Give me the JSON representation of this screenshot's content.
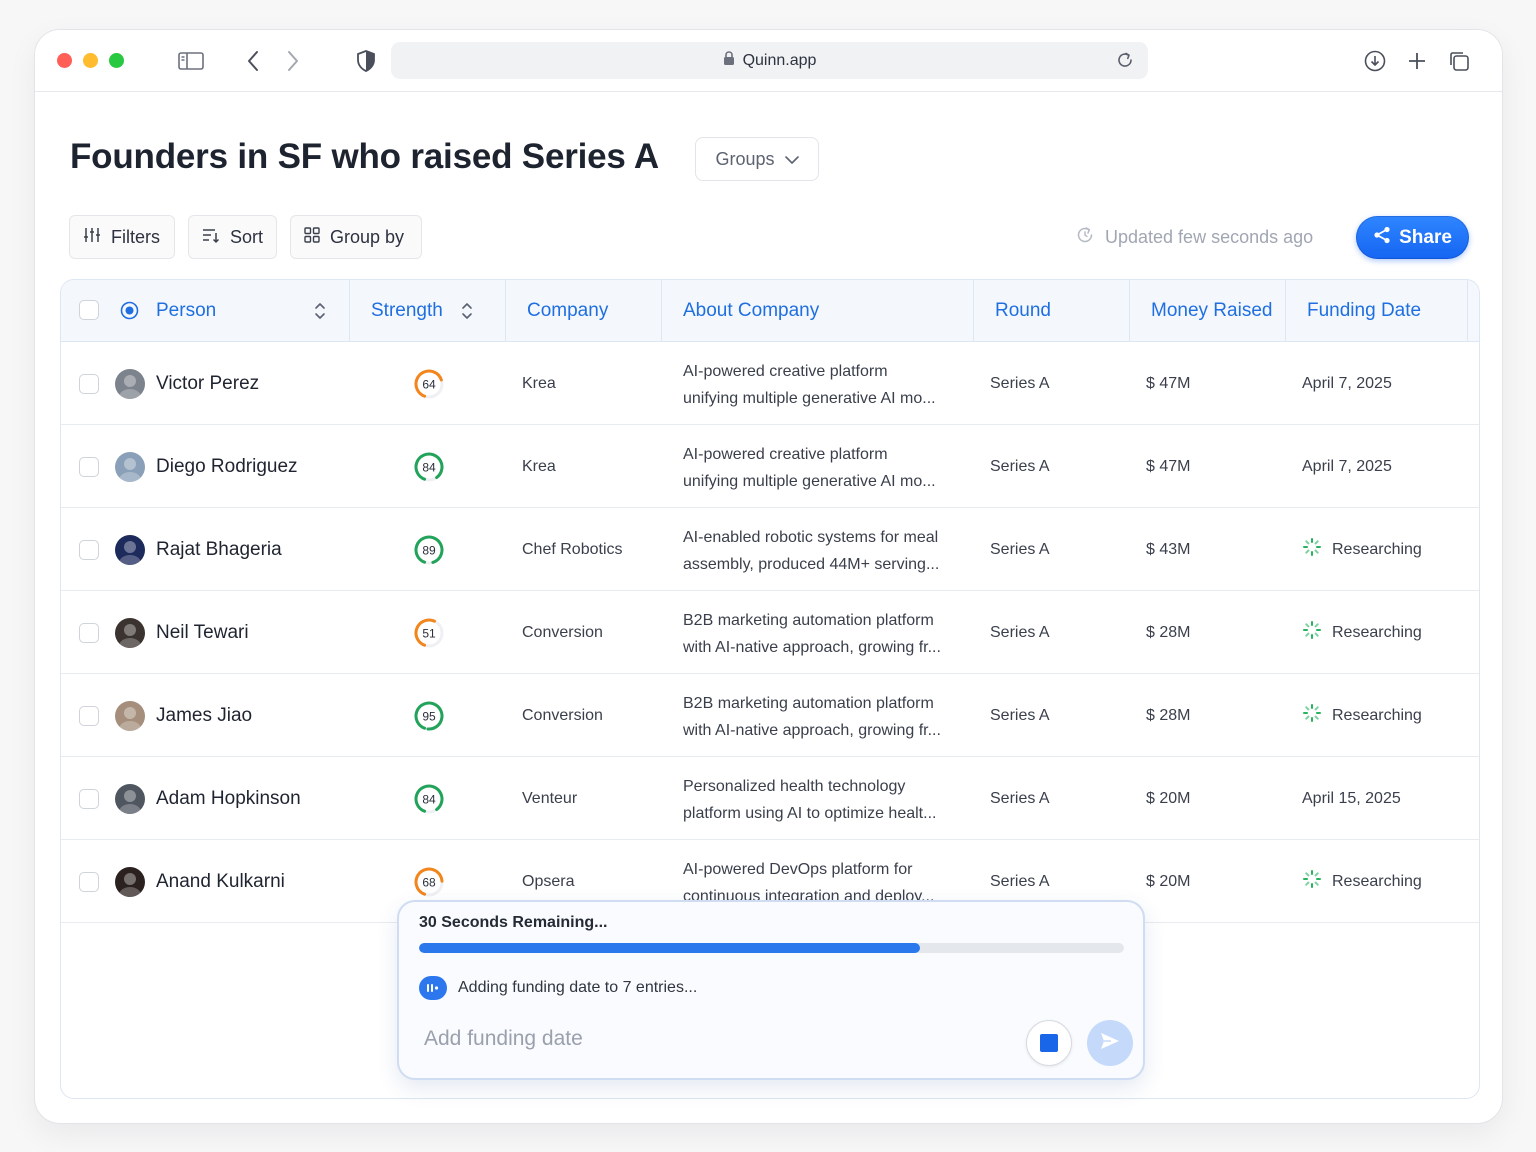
{
  "browser": {
    "url": "Quinn.app"
  },
  "page": {
    "title": "Founders in SF who raised Series A",
    "groups_label": "Groups"
  },
  "toolbar": {
    "filters_label": "Filters",
    "sort_label": "Sort",
    "group_by_label": "Group by",
    "updated_text": "Updated few seconds ago",
    "share_label": "Share"
  },
  "table": {
    "columns": {
      "person": "Person",
      "strength": "Strength",
      "company": "Company",
      "about": "About Company",
      "round": "Round",
      "money": "Money Raised",
      "date": "Funding Date"
    },
    "rows": [
      {
        "name": "Victor Perez",
        "strength": "64",
        "strength_color": "#f2851b",
        "company": "Krea",
        "about1": "AI-powered creative platform",
        "about2": "unifying multiple generative AI mo...",
        "round": "Series A",
        "money": "$ 47M",
        "date": "April 7, 2025"
      },
      {
        "name": "Diego Rodriguez",
        "strength": "84",
        "strength_color": "#22a35a",
        "company": "Krea",
        "about1": "AI-powered creative platform",
        "about2": "unifying multiple generative AI mo...",
        "round": "Series A",
        "money": "$ 47M",
        "date": "April 7, 2025"
      },
      {
        "name": "Rajat Bhageria",
        "strength": "89",
        "strength_color": "#22a35a",
        "company": "Chef Robotics",
        "about1": "AI-enabled robotic systems for meal",
        "about2": "assembly, produced 44M+ serving...",
        "round": "Series A",
        "money": "$ 43M",
        "date": "Researching"
      },
      {
        "name": "Neil Tewari",
        "strength": "51",
        "strength_color": "#f2851b",
        "company": "Conversion",
        "about1": "B2B marketing automation platform",
        "about2": "with AI-native approach, growing fr...",
        "round": "Series A",
        "money": "$ 28M",
        "date": "Researching"
      },
      {
        "name": "James Jiao",
        "strength": "95",
        "strength_color": "#22a35a",
        "company": "Conversion",
        "about1": "B2B marketing automation platform",
        "about2": "with AI-native approach, growing fr...",
        "round": "Series A",
        "money": "$ 28M",
        "date": "Researching"
      },
      {
        "name": "Adam Hopkinson",
        "strength": "84",
        "strength_color": "#22a35a",
        "company": "Venteur",
        "about1": "Personalized health technology",
        "about2": "platform using AI to optimize healt...",
        "round": "Series A",
        "money": "$ 20M",
        "date": "April 15, 2025"
      },
      {
        "name": "Anand Kulkarni",
        "strength": "68",
        "strength_color": "#f2851b",
        "company": "Opsera",
        "about1": "AI-powered DevOps platform for",
        "about2": "continuous integration and deploy...",
        "round": "Series A",
        "money": "$ 20M",
        "date": "Researching"
      }
    ]
  },
  "popup": {
    "title": "30 Seconds Remaining...",
    "progress_fraction": 0.71,
    "status": "Adding funding date to 7 entries...",
    "input_placeholder": "Add funding date"
  }
}
